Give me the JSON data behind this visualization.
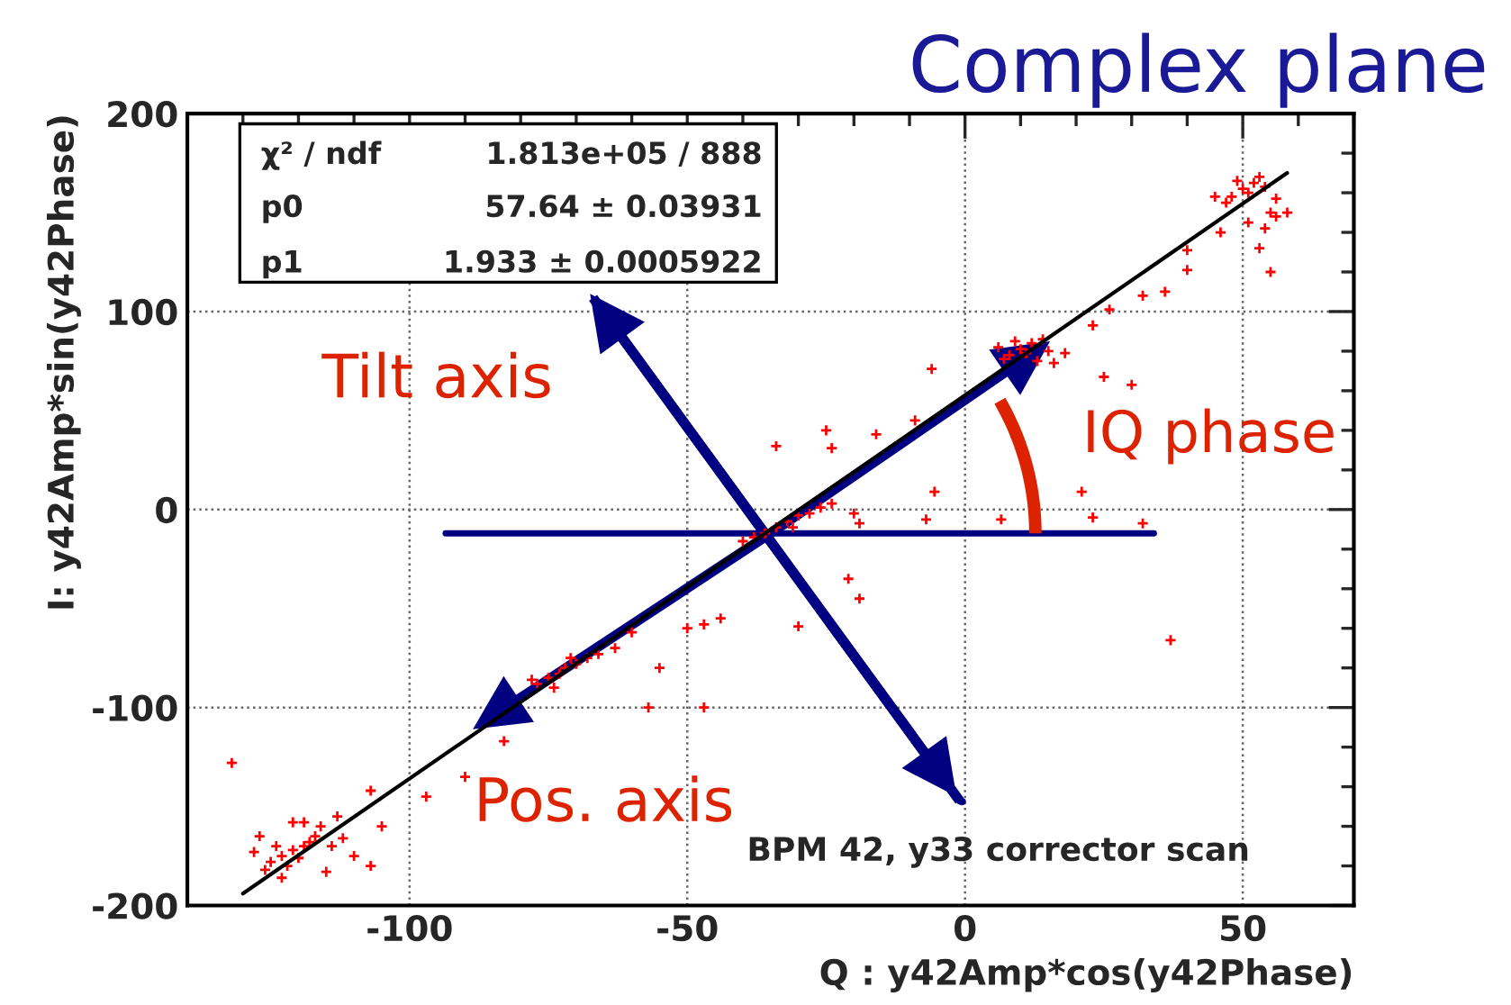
{
  "chart_data": {
    "type": "scatter",
    "title": "Complex plane",
    "xlabel": "Q : y42Amp*cos(y42Phase)",
    "ylabel": "I: y42Amp*sin(y42Phase)",
    "xlim": [
      -140,
      70
    ],
    "ylim": [
      -200,
      200
    ],
    "xticks": [
      -100,
      -50,
      0,
      50
    ],
    "yticks": [
      -200,
      -100,
      0,
      100,
      200
    ],
    "grid": true,
    "legend": false,
    "annotations": [
      "χ² / ndf",
      "1.813e+05 / 888",
      "p0",
      "57.64 ± 0.03931",
      "p1",
      "1.933 ± 0.0005922",
      "Tilt axis",
      "IQ phase",
      "Pos. axis",
      "BPM 42, y33 corrector scan"
    ],
    "series": [
      {
        "color": "#ff0000",
        "marker": "cross",
        "x": [
          -125,
          -123,
          -121,
          -119,
          -122,
          -118,
          -126,
          -120,
          -117,
          -124,
          -116,
          -121,
          -114,
          -112,
          -119,
          -127,
          -115,
          -110,
          -107,
          -113,
          -128,
          -123,
          -132,
          -107,
          -97,
          -105,
          -90,
          -83,
          -75,
          -72,
          -70,
          -77,
          -68,
          -73,
          -66,
          -78,
          -71,
          -63,
          -74,
          -60,
          -55,
          -50,
          -47,
          -44,
          -57,
          -47,
          -36,
          -34,
          -32,
          -30,
          -28,
          -38,
          -26,
          -31,
          -24,
          -40,
          -34,
          -25,
          -24,
          -16,
          -9,
          -6,
          25,
          30,
          21,
          23,
          32,
          6.5,
          -5.5,
          -19,
          -7,
          -20,
          -21,
          -19,
          -30,
          37,
          8,
          10,
          12,
          14,
          9,
          11,
          15,
          13,
          7,
          16,
          18,
          6,
          23,
          26,
          32,
          40,
          40,
          36,
          48,
          50,
          52,
          49,
          51,
          53,
          47,
          54,
          55,
          58,
          56,
          51,
          46,
          53,
          54,
          45,
          56,
          55
        ],
        "values": [
          -178,
          -175,
          -172,
          -170,
          -180,
          -168,
          -182,
          -176,
          -165,
          -170,
          -160,
          -158,
          -170,
          -166,
          -158,
          -165,
          -183,
          -175,
          -180,
          -155,
          -173,
          -186,
          -128,
          -142,
          -145,
          -160,
          -135,
          -117,
          -85,
          -80,
          -78,
          -88,
          -75,
          -83,
          -73,
          -86,
          -75,
          -70,
          -90,
          -62,
          -80,
          -60,
          -58,
          -55,
          -100,
          -100,
          -12,
          -9,
          -6,
          -3,
          -2,
          -14,
          1,
          -9,
          3,
          -16,
          32,
          40,
          31,
          38,
          45,
          71,
          67,
          63,
          9,
          -4,
          -7,
          -5,
          9,
          -7,
          -5,
          -2,
          -35,
          -45,
          -59,
          -66,
          78,
          81,
          84,
          86,
          85,
          79,
          80,
          75,
          76,
          74,
          79,
          82,
          93,
          101,
          108,
          121,
          131,
          110,
          158,
          162,
          165,
          166,
          160,
          168,
          155,
          163,
          150,
          150,
          148,
          145,
          140,
          132,
          142,
          158,
          157,
          120
        ]
      },
      {
        "type": "line",
        "color": "#000000",
        "marker": "none",
        "x": [
          -130,
          58
        ],
        "values": [
          -194,
          170
        ]
      }
    ]
  }
}
